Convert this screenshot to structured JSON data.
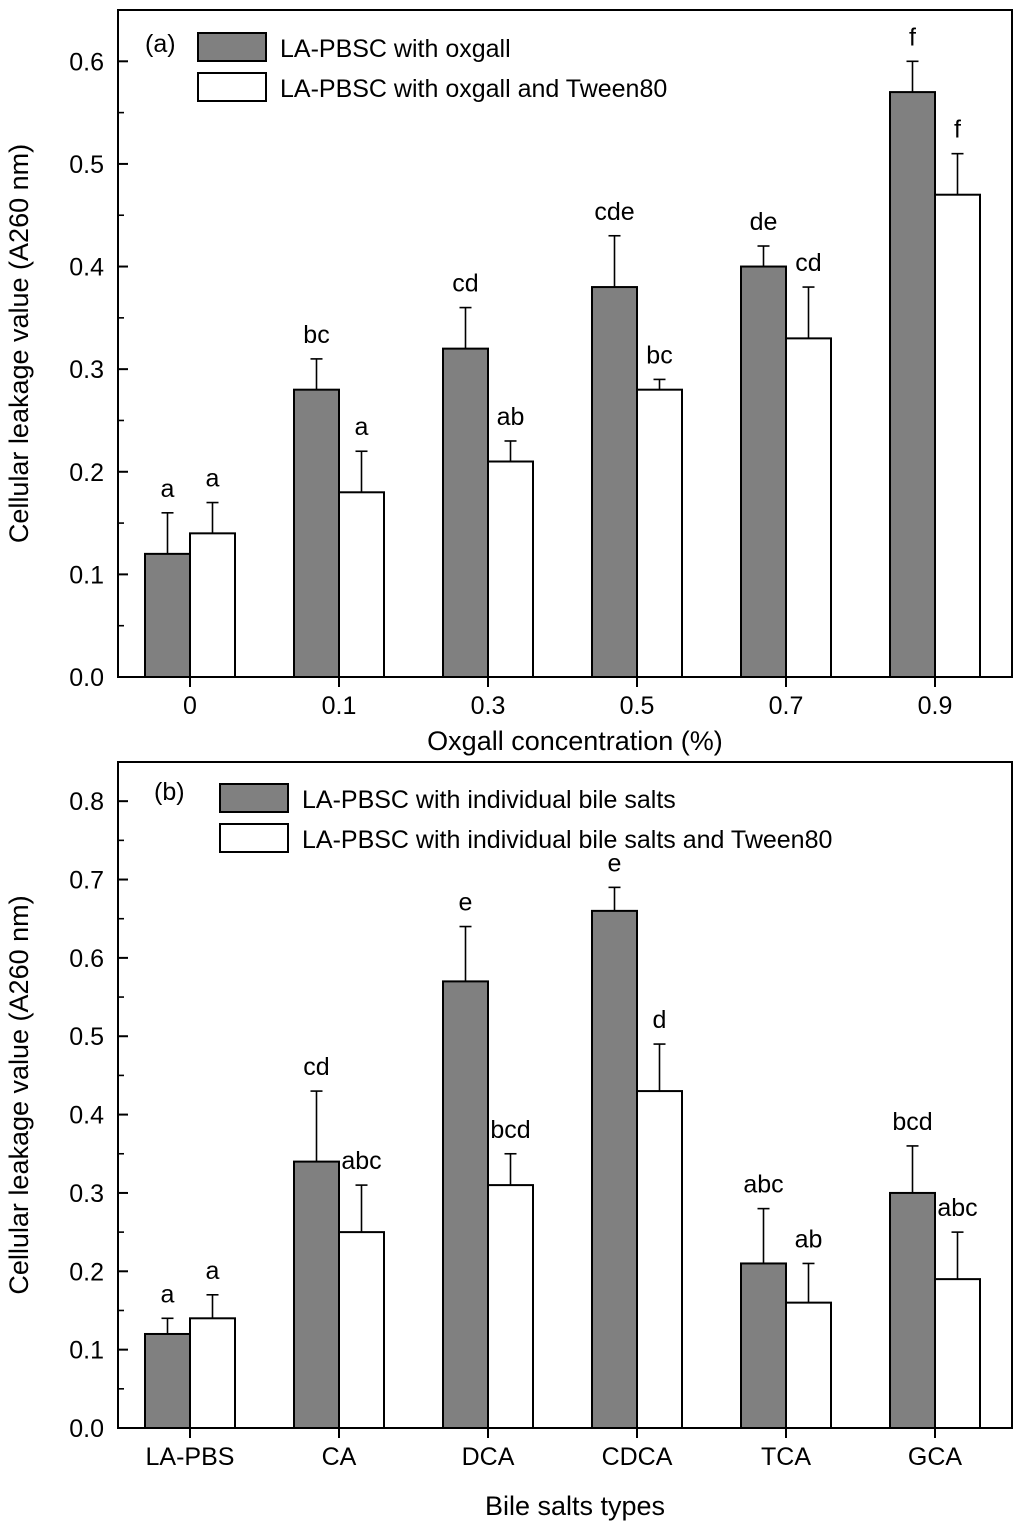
{
  "colors": {
    "series1": "#808080",
    "series2": "#ffffff",
    "stroke": "#000000"
  },
  "chart_data": [
    {
      "type": "bar",
      "panel": "(a)",
      "xlabel": "Oxgall concentration (%)",
      "ylabel": "Cellular leakage value (A260 nm)",
      "ylim": [
        0,
        0.65
      ],
      "yticks": [
        "0.0",
        "0.1",
        "0.2",
        "0.3",
        "0.4",
        "0.5",
        "0.6"
      ],
      "categories": [
        "0",
        "0.1",
        "0.3",
        "0.5",
        "0.7",
        "0.9"
      ],
      "legend_position": "top-left",
      "series": [
        {
          "name": "LA-PBSC with oxgall",
          "values": [
            0.12,
            0.28,
            0.32,
            0.38,
            0.4,
            0.57
          ],
          "errors": [
            0.04,
            0.03,
            0.04,
            0.05,
            0.02,
            0.03
          ],
          "letters": [
            "a",
            "bc",
            "cd",
            "cde",
            "de",
            "f"
          ]
        },
        {
          "name": "LA-PBSC with oxgall and Tween80",
          "values": [
            0.14,
            0.18,
            0.21,
            0.28,
            0.33,
            0.47
          ],
          "errors": [
            0.03,
            0.04,
            0.02,
            0.01,
            0.05,
            0.04
          ],
          "letters": [
            "a",
            "a",
            "ab",
            "bc",
            "cd",
            "f"
          ]
        }
      ]
    },
    {
      "type": "bar",
      "panel": "(b)",
      "xlabel": "Bile salts types",
      "ylabel": "Cellular leakage value (A260 nm)",
      "ylim": [
        0,
        0.85
      ],
      "yticks": [
        "0.0",
        "0.1",
        "0.2",
        "0.3",
        "0.4",
        "0.5",
        "0.6",
        "0.7",
        "0.8"
      ],
      "categories": [
        "LA-PBS",
        "CA",
        "DCA",
        "CDCA",
        "TCA",
        "GCA"
      ],
      "legend_position": "top-left",
      "series": [
        {
          "name": "LA-PBSC with individual bile salts",
          "values": [
            0.12,
            0.34,
            0.57,
            0.66,
            0.21,
            0.3
          ],
          "errors": [
            0.02,
            0.09,
            0.07,
            0.03,
            0.07,
            0.06
          ],
          "letters": [
            "a",
            "cd",
            "e",
            "e",
            "abc",
            "bcd"
          ]
        },
        {
          "name": "LA-PBSC with individual bile salts and Tween80",
          "values": [
            0.14,
            0.25,
            0.31,
            0.43,
            0.16,
            0.19
          ],
          "errors": [
            0.03,
            0.06,
            0.04,
            0.06,
            0.05,
            0.06
          ],
          "letters": [
            "a",
            "abc",
            "bcd",
            "d",
            "ab",
            "abc"
          ]
        }
      ]
    }
  ]
}
